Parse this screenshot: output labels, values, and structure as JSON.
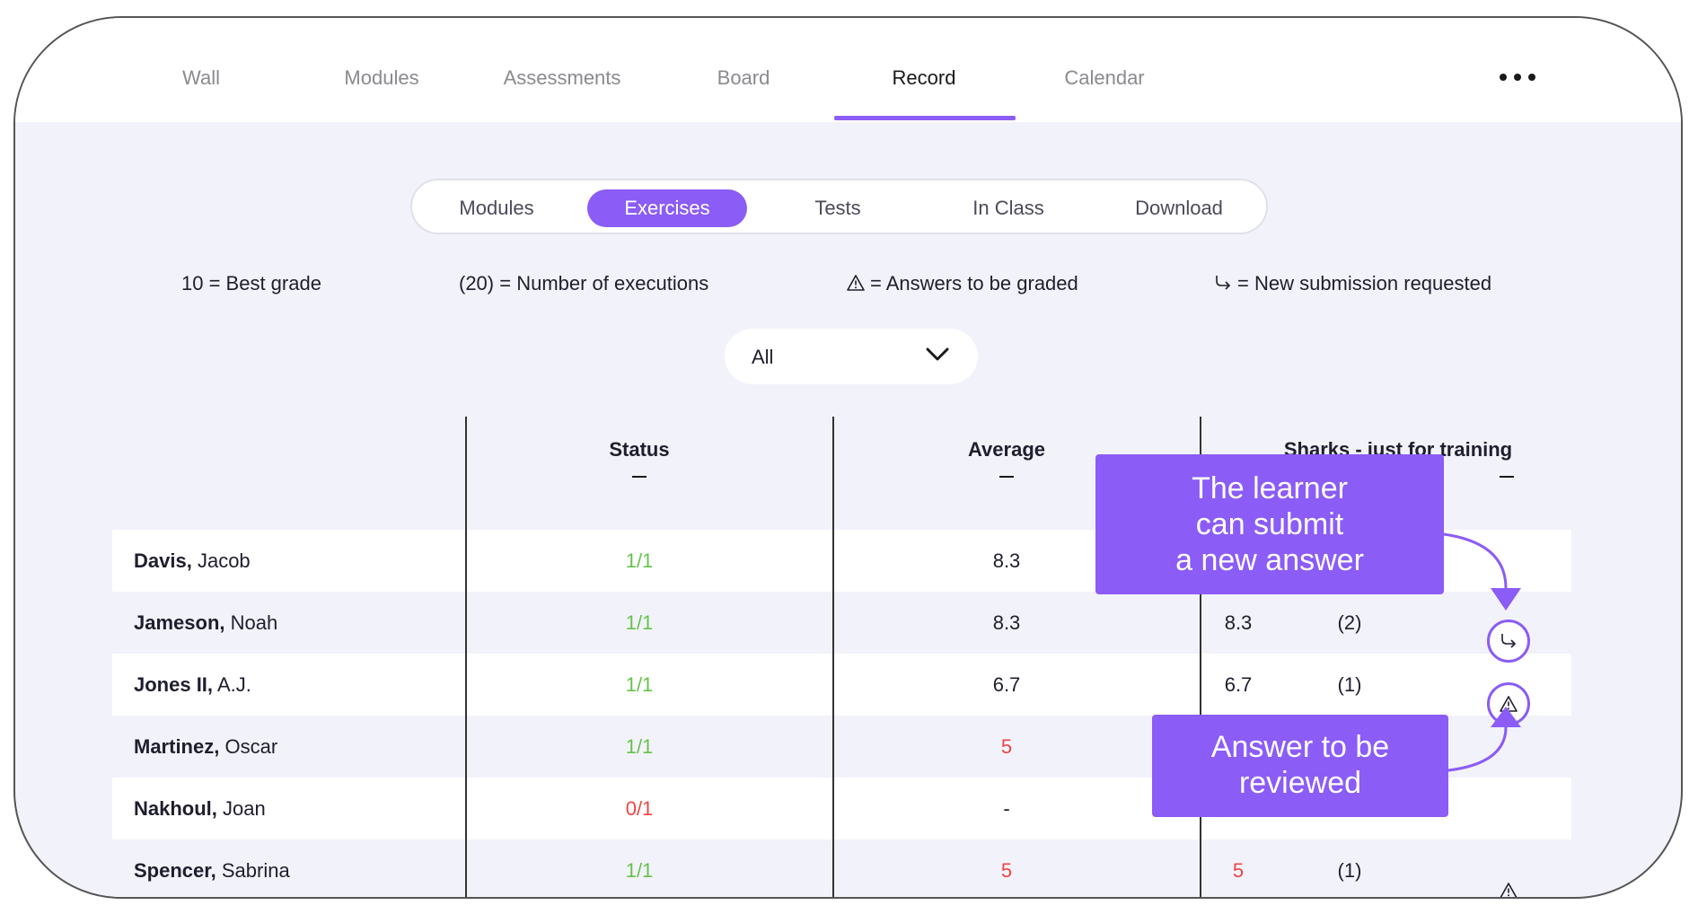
{
  "nav": {
    "tabs": [
      "Wall",
      "Modules",
      "Assessments",
      "Board",
      "Record",
      "Calendar"
    ],
    "active": "Record",
    "more_icon": "more-horizontal-icon"
  },
  "subnav": {
    "tabs": [
      "Modules",
      "Exercises",
      "Tests",
      "In Class",
      "Download"
    ],
    "active": "Exercises"
  },
  "legend": {
    "best_grade": "10 = Best grade",
    "executions": "(20) = Number of executions",
    "to_grade": "= Answers to be graded",
    "resubmit": "= New submission requested",
    "to_grade_icon": "warning-triangle-icon",
    "resubmit_icon": "resubmit-arrow-icon"
  },
  "filter": {
    "value": "All"
  },
  "table": {
    "headers": {
      "status": "Status",
      "average": "Average",
      "exercise": "Sharks - just for training"
    },
    "rows": [
      {
        "last": "Davis,",
        "first": "Jacob",
        "status": "1/1",
        "status_color": "#66c24a",
        "average": "8.3",
        "avg_color": "#1e1e2e",
        "grade": "",
        "grade_color": "#1e1e2e",
        "executions": "",
        "icon": ""
      },
      {
        "last": "Jameson,",
        "first": "Noah",
        "status": "1/1",
        "status_color": "#66c24a",
        "average": "8.3",
        "avg_color": "#1e1e2e",
        "grade": "8.3",
        "grade_color": "#1e1e2e",
        "executions": "(2)",
        "icon": "resubmit"
      },
      {
        "last": "Jones II,",
        "first": "A.J.",
        "status": "1/1",
        "status_color": "#66c24a",
        "average": "6.7",
        "avg_color": "#1e1e2e",
        "grade": "6.7",
        "grade_color": "#1e1e2e",
        "executions": "(1)",
        "icon": "warning"
      },
      {
        "last": "Martinez,",
        "first": "Oscar",
        "status": "1/1",
        "status_color": "#66c24a",
        "average": "5",
        "avg_color": "#ef4444",
        "grade": "",
        "grade_color": "#1e1e2e",
        "executions": "",
        "icon": ""
      },
      {
        "last": "Nakhoul,",
        "first": "Joan",
        "status": "0/1",
        "status_color": "#ef4444",
        "average": "-",
        "avg_color": "#1e1e2e",
        "grade": "",
        "grade_color": "#1e1e2e",
        "executions": "",
        "icon": ""
      },
      {
        "last": "Spencer,",
        "first": "Sabrina",
        "status": "1/1",
        "status_color": "#66c24a",
        "average": "5",
        "avg_color": "#ef4444",
        "grade": "5",
        "grade_color": "#ef4444",
        "executions": "(1)",
        "icon": "warning-plain"
      }
    ]
  },
  "callouts": {
    "submit_line1": "The learner",
    "submit_line2": "can submit",
    "submit_line3": "a new answer",
    "review_line1": "Answer to be",
    "review_line2": "reviewed"
  },
  "colors": {
    "accent": "#8b5cf6",
    "ok": "#66c24a",
    "bad": "#ef4444",
    "bg": "#f2f2fa"
  }
}
